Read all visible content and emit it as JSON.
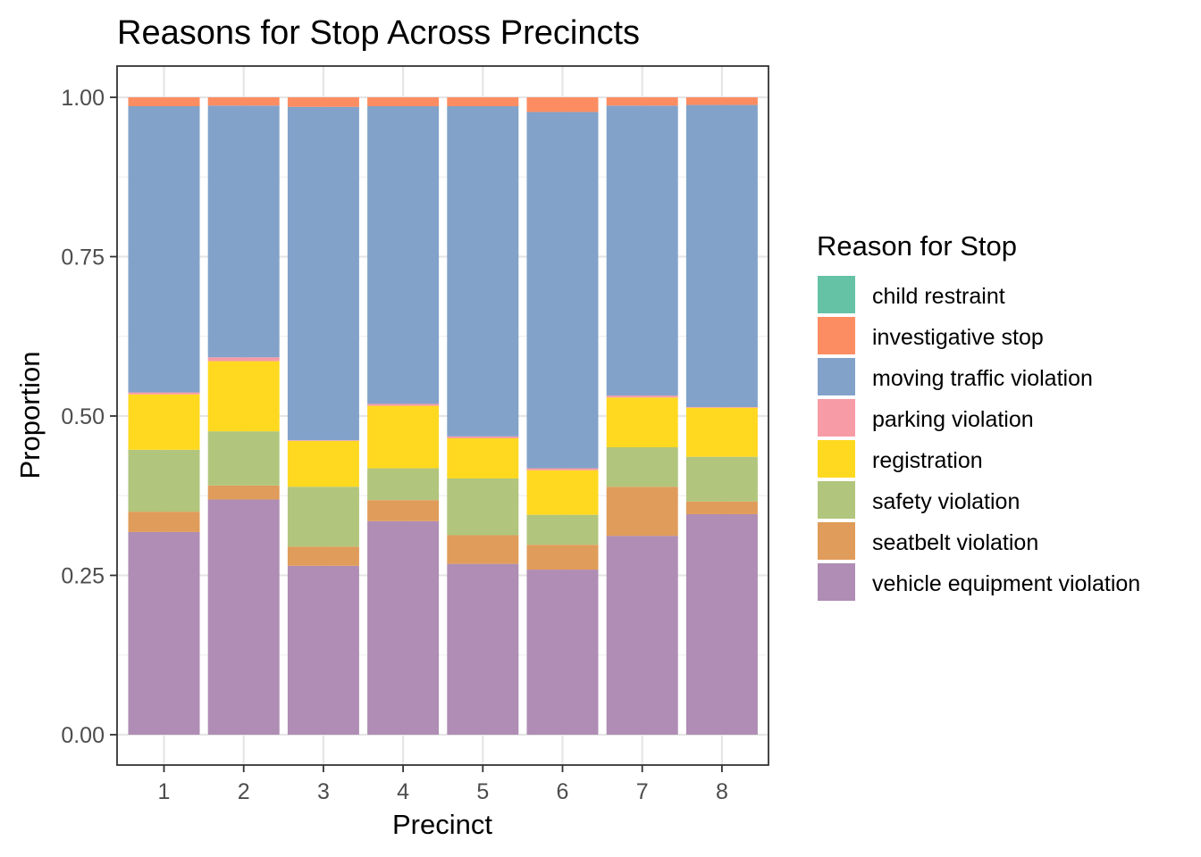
{
  "chart_data": {
    "type": "bar",
    "stacked": true,
    "title": "Reasons for Stop Across Precincts",
    "xlabel": "Precinct",
    "ylabel": "Proportion",
    "categories": [
      "1",
      "2",
      "3",
      "4",
      "5",
      "6",
      "7",
      "8"
    ],
    "ylim": [
      0,
      1
    ],
    "yticks": [
      "0.00",
      "0.25",
      "0.50",
      "0.75",
      "1.00"
    ],
    "grid": true,
    "legend": {
      "title": "Reason for Stop",
      "position": "right"
    },
    "series": [
      {
        "name": "vehicle equipment violation",
        "color": "#AF8DB4",
        "values": [
          0.318,
          0.369,
          0.265,
          0.335,
          0.268,
          0.259,
          0.312,
          0.346
        ]
      },
      {
        "name": "seatbelt violation",
        "color": "#E09C5A",
        "values": [
          0.032,
          0.022,
          0.03,
          0.033,
          0.045,
          0.039,
          0.077,
          0.02
        ]
      },
      {
        "name": "safety violation",
        "color": "#B1C57C",
        "values": [
          0.097,
          0.085,
          0.094,
          0.05,
          0.089,
          0.047,
          0.062,
          0.07
        ]
      },
      {
        "name": "registration",
        "color": "#FFD920",
        "values": [
          0.087,
          0.11,
          0.072,
          0.098,
          0.063,
          0.07,
          0.078,
          0.077
        ]
      },
      {
        "name": "parking violation",
        "color": "#F79BA6",
        "values": [
          0.003,
          0.006,
          0.001,
          0.003,
          0.003,
          0.003,
          0.003,
          0.001
        ]
      },
      {
        "name": "moving traffic violation",
        "color": "#82A2C9",
        "values": [
          0.449,
          0.395,
          0.523,
          0.467,
          0.518,
          0.559,
          0.455,
          0.474
        ]
      },
      {
        "name": "investigative stop",
        "color": "#FC8D62",
        "values": [
          0.014,
          0.013,
          0.015,
          0.014,
          0.014,
          0.023,
          0.013,
          0.012
        ]
      },
      {
        "name": "child restraint",
        "color": "#66C2A5",
        "values": [
          0.0,
          0.0,
          0.0,
          0.0,
          0.0,
          0.0,
          0.0,
          0.0
        ]
      }
    ],
    "legend_order": [
      "child restraint",
      "investigative stop",
      "moving traffic violation",
      "parking violation",
      "registration",
      "safety violation",
      "seatbelt violation",
      "vehicle equipment violation"
    ]
  }
}
